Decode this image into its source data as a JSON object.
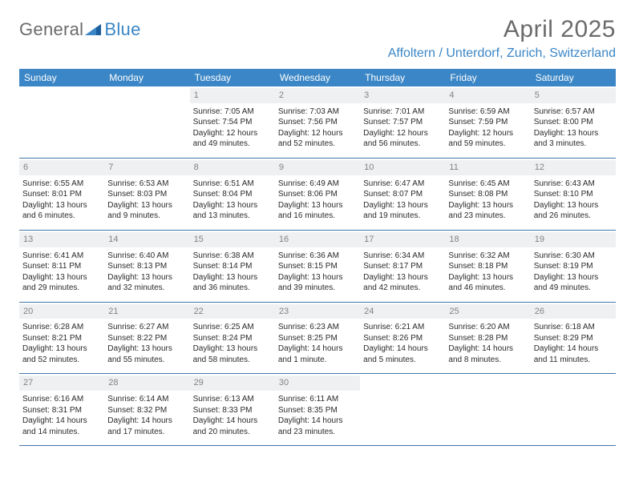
{
  "brand": {
    "part1": "General",
    "part2": "Blue"
  },
  "title": "April 2025",
  "location": "Affoltern / Unterdorf, Zurich, Switzerland",
  "header_bg": "#3b86c6",
  "header_fg": "#ffffff",
  "accent": "#3b86c6",
  "grey_text": "#6b6b6b",
  "daynum_bg": "#eef0f2",
  "daynum_fg": "#808285",
  "rule_color": "#4577a8",
  "body_font_size": 10,
  "title_font_size": 30,
  "location_font_size": 16,
  "day_names": [
    "Sunday",
    "Monday",
    "Tuesday",
    "Wednesday",
    "Thursday",
    "Friday",
    "Saturday"
  ],
  "weeks": [
    [
      {
        "num": "",
        "sunrise": "",
        "sunset": "",
        "daylight": ""
      },
      {
        "num": "",
        "sunrise": "",
        "sunset": "",
        "daylight": ""
      },
      {
        "num": "1",
        "sunrise": "Sunrise: 7:05 AM",
        "sunset": "Sunset: 7:54 PM",
        "daylight": "Daylight: 12 hours and 49 minutes."
      },
      {
        "num": "2",
        "sunrise": "Sunrise: 7:03 AM",
        "sunset": "Sunset: 7:56 PM",
        "daylight": "Daylight: 12 hours and 52 minutes."
      },
      {
        "num": "3",
        "sunrise": "Sunrise: 7:01 AM",
        "sunset": "Sunset: 7:57 PM",
        "daylight": "Daylight: 12 hours and 56 minutes."
      },
      {
        "num": "4",
        "sunrise": "Sunrise: 6:59 AM",
        "sunset": "Sunset: 7:59 PM",
        "daylight": "Daylight: 12 hours and 59 minutes."
      },
      {
        "num": "5",
        "sunrise": "Sunrise: 6:57 AM",
        "sunset": "Sunset: 8:00 PM",
        "daylight": "Daylight: 13 hours and 3 minutes."
      }
    ],
    [
      {
        "num": "6",
        "sunrise": "Sunrise: 6:55 AM",
        "sunset": "Sunset: 8:01 PM",
        "daylight": "Daylight: 13 hours and 6 minutes."
      },
      {
        "num": "7",
        "sunrise": "Sunrise: 6:53 AM",
        "sunset": "Sunset: 8:03 PM",
        "daylight": "Daylight: 13 hours and 9 minutes."
      },
      {
        "num": "8",
        "sunrise": "Sunrise: 6:51 AM",
        "sunset": "Sunset: 8:04 PM",
        "daylight": "Daylight: 13 hours and 13 minutes."
      },
      {
        "num": "9",
        "sunrise": "Sunrise: 6:49 AM",
        "sunset": "Sunset: 8:06 PM",
        "daylight": "Daylight: 13 hours and 16 minutes."
      },
      {
        "num": "10",
        "sunrise": "Sunrise: 6:47 AM",
        "sunset": "Sunset: 8:07 PM",
        "daylight": "Daylight: 13 hours and 19 minutes."
      },
      {
        "num": "11",
        "sunrise": "Sunrise: 6:45 AM",
        "sunset": "Sunset: 8:08 PM",
        "daylight": "Daylight: 13 hours and 23 minutes."
      },
      {
        "num": "12",
        "sunrise": "Sunrise: 6:43 AM",
        "sunset": "Sunset: 8:10 PM",
        "daylight": "Daylight: 13 hours and 26 minutes."
      }
    ],
    [
      {
        "num": "13",
        "sunrise": "Sunrise: 6:41 AM",
        "sunset": "Sunset: 8:11 PM",
        "daylight": "Daylight: 13 hours and 29 minutes."
      },
      {
        "num": "14",
        "sunrise": "Sunrise: 6:40 AM",
        "sunset": "Sunset: 8:13 PM",
        "daylight": "Daylight: 13 hours and 32 minutes."
      },
      {
        "num": "15",
        "sunrise": "Sunrise: 6:38 AM",
        "sunset": "Sunset: 8:14 PM",
        "daylight": "Daylight: 13 hours and 36 minutes."
      },
      {
        "num": "16",
        "sunrise": "Sunrise: 6:36 AM",
        "sunset": "Sunset: 8:15 PM",
        "daylight": "Daylight: 13 hours and 39 minutes."
      },
      {
        "num": "17",
        "sunrise": "Sunrise: 6:34 AM",
        "sunset": "Sunset: 8:17 PM",
        "daylight": "Daylight: 13 hours and 42 minutes."
      },
      {
        "num": "18",
        "sunrise": "Sunrise: 6:32 AM",
        "sunset": "Sunset: 8:18 PM",
        "daylight": "Daylight: 13 hours and 46 minutes."
      },
      {
        "num": "19",
        "sunrise": "Sunrise: 6:30 AM",
        "sunset": "Sunset: 8:19 PM",
        "daylight": "Daylight: 13 hours and 49 minutes."
      }
    ],
    [
      {
        "num": "20",
        "sunrise": "Sunrise: 6:28 AM",
        "sunset": "Sunset: 8:21 PM",
        "daylight": "Daylight: 13 hours and 52 minutes."
      },
      {
        "num": "21",
        "sunrise": "Sunrise: 6:27 AM",
        "sunset": "Sunset: 8:22 PM",
        "daylight": "Daylight: 13 hours and 55 minutes."
      },
      {
        "num": "22",
        "sunrise": "Sunrise: 6:25 AM",
        "sunset": "Sunset: 8:24 PM",
        "daylight": "Daylight: 13 hours and 58 minutes."
      },
      {
        "num": "23",
        "sunrise": "Sunrise: 6:23 AM",
        "sunset": "Sunset: 8:25 PM",
        "daylight": "Daylight: 14 hours and 1 minute."
      },
      {
        "num": "24",
        "sunrise": "Sunrise: 6:21 AM",
        "sunset": "Sunset: 8:26 PM",
        "daylight": "Daylight: 14 hours and 5 minutes."
      },
      {
        "num": "25",
        "sunrise": "Sunrise: 6:20 AM",
        "sunset": "Sunset: 8:28 PM",
        "daylight": "Daylight: 14 hours and 8 minutes."
      },
      {
        "num": "26",
        "sunrise": "Sunrise: 6:18 AM",
        "sunset": "Sunset: 8:29 PM",
        "daylight": "Daylight: 14 hours and 11 minutes."
      }
    ],
    [
      {
        "num": "27",
        "sunrise": "Sunrise: 6:16 AM",
        "sunset": "Sunset: 8:31 PM",
        "daylight": "Daylight: 14 hours and 14 minutes."
      },
      {
        "num": "28",
        "sunrise": "Sunrise: 6:14 AM",
        "sunset": "Sunset: 8:32 PM",
        "daylight": "Daylight: 14 hours and 17 minutes."
      },
      {
        "num": "29",
        "sunrise": "Sunrise: 6:13 AM",
        "sunset": "Sunset: 8:33 PM",
        "daylight": "Daylight: 14 hours and 20 minutes."
      },
      {
        "num": "30",
        "sunrise": "Sunrise: 6:11 AM",
        "sunset": "Sunset: 8:35 PM",
        "daylight": "Daylight: 14 hours and 23 minutes."
      },
      {
        "num": "",
        "sunrise": "",
        "sunset": "",
        "daylight": ""
      },
      {
        "num": "",
        "sunrise": "",
        "sunset": "",
        "daylight": ""
      },
      {
        "num": "",
        "sunrise": "",
        "sunset": "",
        "daylight": ""
      }
    ]
  ]
}
